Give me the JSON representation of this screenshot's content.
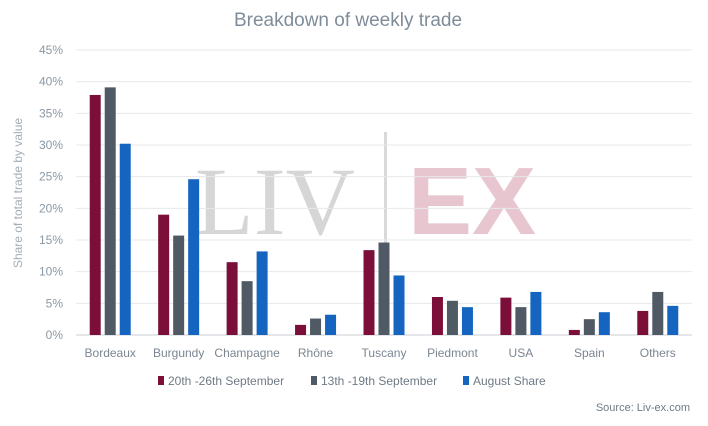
{
  "watermark": {
    "left": "LIV",
    "right": "EX"
  },
  "source": "Source: Liv-ex.com",
  "chart_data": {
    "type": "bar",
    "title": "Breakdown of weekly trade",
    "ylabel": "Share of total trade by value",
    "xlabel": "",
    "ylim": [
      0,
      45
    ],
    "yticks": [
      "0%",
      "5%",
      "10%",
      "15%",
      "20%",
      "25%",
      "30%",
      "35%",
      "40%",
      "45%"
    ],
    "grid": true,
    "legend_position": "bottom",
    "categories": [
      "Bordeaux",
      "Burgundy",
      "Champagne",
      "Rhône",
      "Tuscany",
      "Piedmont",
      "USA",
      "Spain",
      "Others"
    ],
    "series": [
      {
        "name": "20th -26th September",
        "color": "#7b0f3a",
        "values": [
          37.9,
          19.0,
          11.5,
          1.6,
          13.4,
          6.0,
          5.9,
          0.8,
          3.8
        ]
      },
      {
        "name": "13th -19th September",
        "color": "#4f5a65",
        "values": [
          39.1,
          15.7,
          8.5,
          2.6,
          14.6,
          5.4,
          4.4,
          2.5,
          6.8
        ]
      },
      {
        "name": "August Share",
        "color": "#1565c0",
        "values": [
          30.2,
          24.6,
          13.2,
          3.2,
          9.4,
          4.4,
          6.8,
          3.6,
          4.6
        ]
      }
    ]
  }
}
